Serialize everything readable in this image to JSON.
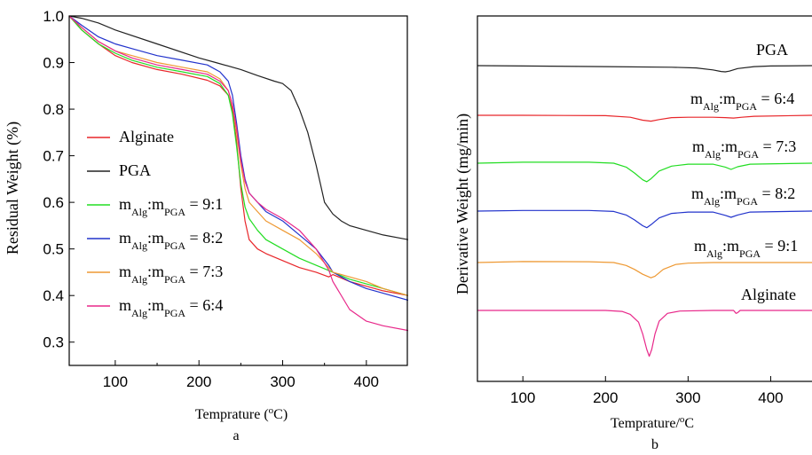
{
  "chart_data": [
    {
      "type": "line",
      "panel_label": "a",
      "xlabel": "Temprature (",
      "xlabel_sup": "o",
      "xlabel_end": "C)",
      "ylabel": "Residual Weight (%)",
      "xlim": [
        45,
        450
      ],
      "ylim": [
        0.25,
        1.0
      ],
      "xticks": [
        "100",
        "200",
        "300",
        "400"
      ],
      "xtick_values": [
        100,
        200,
        300,
        400
      ],
      "yticks": [
        "0.3",
        "0.4",
        "0.5",
        "0.6",
        "0.7",
        "0.8",
        "0.9",
        "1.0"
      ],
      "ytick_values": [
        0.3,
        0.4,
        0.5,
        0.6,
        0.7,
        0.8,
        0.9,
        1.0
      ],
      "legend": [
        {
          "series": 0,
          "text": "Alginate"
        },
        {
          "series": 1,
          "text": "PGA"
        },
        {
          "series": 2,
          "m": "m",
          "sub1": "Alg",
          "colon": ":m",
          "sub2": "PGA",
          "ratio": " = 9:1"
        },
        {
          "series": 3,
          "m": "m",
          "sub1": "Alg",
          "colon": ":m",
          "sub2": "PGA",
          "ratio": " = 8:2"
        },
        {
          "series": 4,
          "m": "m",
          "sub1": "Alg",
          "colon": ":m",
          "sub2": "PGA",
          "ratio": " = 7:3"
        },
        {
          "series": 5,
          "m": "m",
          "sub1": "Alg",
          "colon": ":m",
          "sub2": "PGA",
          "ratio": " = 6:4"
        }
      ],
      "series": [
        {
          "name": "Alginate",
          "color": "#e8262a",
          "x": [
            45,
            60,
            80,
            100,
            120,
            150,
            180,
            210,
            225,
            235,
            240,
            245,
            250,
            255,
            260,
            270,
            280,
            300,
            320,
            340,
            355,
            360,
            380,
            400,
            420,
            450
          ],
          "y": [
            1.0,
            0.97,
            0.94,
            0.915,
            0.9,
            0.885,
            0.875,
            0.862,
            0.85,
            0.83,
            0.8,
            0.73,
            0.63,
            0.56,
            0.52,
            0.5,
            0.49,
            0.475,
            0.46,
            0.45,
            0.44,
            0.445,
            0.43,
            0.42,
            0.41,
            0.4
          ]
        },
        {
          "name": "PGA",
          "color": "#222222",
          "x": [
            45,
            60,
            80,
            100,
            150,
            200,
            220,
            250,
            270,
            290,
            300,
            310,
            320,
            330,
            340,
            345,
            350,
            360,
            370,
            380,
            400,
            420,
            450
          ],
          "y": [
            1.0,
            0.995,
            0.985,
            0.97,
            0.94,
            0.91,
            0.9,
            0.885,
            0.872,
            0.86,
            0.855,
            0.84,
            0.8,
            0.75,
            0.68,
            0.64,
            0.6,
            0.575,
            0.56,
            0.55,
            0.54,
            0.53,
            0.52
          ]
        },
        {
          "name": "9:1",
          "color": "#22dd22",
          "x": [
            45,
            60,
            80,
            100,
            120,
            150,
            180,
            210,
            225,
            235,
            240,
            245,
            250,
            255,
            260,
            270,
            280,
            300,
            320,
            340,
            360,
            380,
            400,
            420,
            450
          ],
          "y": [
            1.0,
            0.97,
            0.94,
            0.92,
            0.905,
            0.89,
            0.88,
            0.87,
            0.855,
            0.83,
            0.79,
            0.72,
            0.64,
            0.59,
            0.565,
            0.54,
            0.52,
            0.5,
            0.48,
            0.465,
            0.45,
            0.435,
            0.425,
            0.415,
            0.4
          ]
        },
        {
          "name": "8:2",
          "color": "#2233cc",
          "x": [
            45,
            60,
            80,
            100,
            120,
            150,
            180,
            210,
            225,
            235,
            240,
            245,
            250,
            255,
            260,
            270,
            280,
            300,
            320,
            340,
            355,
            360,
            380,
            400,
            420,
            450
          ],
          "y": [
            1.0,
            0.98,
            0.955,
            0.94,
            0.93,
            0.915,
            0.905,
            0.895,
            0.88,
            0.86,
            0.83,
            0.77,
            0.7,
            0.65,
            0.62,
            0.6,
            0.58,
            0.56,
            0.53,
            0.5,
            0.465,
            0.45,
            0.43,
            0.415,
            0.405,
            0.39
          ]
        },
        {
          "name": "7:3",
          "color": "#ee9933",
          "x": [
            45,
            60,
            80,
            100,
            120,
            150,
            180,
            210,
            225,
            235,
            240,
            245,
            250,
            255,
            260,
            270,
            280,
            300,
            320,
            340,
            355,
            360,
            380,
            400,
            420,
            450
          ],
          "y": [
            1.0,
            0.975,
            0.945,
            0.925,
            0.915,
            0.9,
            0.89,
            0.88,
            0.865,
            0.84,
            0.81,
            0.75,
            0.68,
            0.63,
            0.6,
            0.58,
            0.56,
            0.54,
            0.52,
            0.49,
            0.46,
            0.45,
            0.44,
            0.43,
            0.415,
            0.4
          ]
        },
        {
          "name": "6:4",
          "color": "#e8288a",
          "x": [
            45,
            60,
            80,
            100,
            120,
            150,
            180,
            210,
            225,
            235,
            240,
            245,
            250,
            255,
            260,
            270,
            280,
            300,
            320,
            340,
            355,
            360,
            380,
            400,
            420,
            450
          ],
          "y": [
            1.0,
            0.975,
            0.945,
            0.925,
            0.91,
            0.895,
            0.885,
            0.875,
            0.86,
            0.84,
            0.81,
            0.76,
            0.69,
            0.645,
            0.62,
            0.6,
            0.585,
            0.565,
            0.54,
            0.5,
            0.455,
            0.43,
            0.37,
            0.345,
            0.335,
            0.325
          ]
        }
      ]
    },
    {
      "type": "line",
      "panel_label": "b",
      "xlabel": "Temprature/",
      "xlabel_sup": "o",
      "xlabel_end": "C",
      "ylabel": "Derivative Weight (mg/min)",
      "xlim": [
        45,
        450
      ],
      "xticks": [
        "100",
        "200",
        "300",
        "400"
      ],
      "xtick_values": [
        100,
        200,
        300,
        400
      ],
      "baselines": [
        0,
        -1,
        -2,
        -3,
        -4,
        -5
      ],
      "labels": [
        {
          "series": 0,
          "text": "PGA"
        },
        {
          "series": 1,
          "m": "m",
          "sub1": "Alg",
          "colon": ":m",
          "sub2": "PGA",
          "ratio": " = 6:4"
        },
        {
          "series": 2,
          "m": "m",
          "sub1": "Alg",
          "colon": ":m",
          "sub2": "PGA",
          "ratio": " = 7:3"
        },
        {
          "series": 3,
          "m": "m",
          "sub1": "Alg",
          "colon": ":m",
          "sub2": "PGA",
          "ratio": " = 8:2"
        },
        {
          "series": 4,
          "m": "m",
          "sub1": "Alg",
          "colon": ":m",
          "sub2": "PGA",
          "ratio": " = 9:1"
        },
        {
          "series": 5,
          "text": "Alginate"
        }
      ],
      "series": [
        {
          "name": "PGA",
          "color": "#222222",
          "x": [
            45,
            100,
            200,
            280,
            310,
            330,
            340,
            345,
            350,
            360,
            380,
            400,
            450
          ],
          "y": [
            0.0,
            -0.02,
            -0.05,
            -0.08,
            -0.12,
            -0.22,
            -0.3,
            -0.32,
            -0.28,
            -0.15,
            -0.05,
            -0.02,
            0.0
          ]
        },
        {
          "name": "6:4",
          "color": "#e8262a",
          "x": [
            45,
            100,
            200,
            230,
            245,
            255,
            265,
            280,
            300,
            330,
            345,
            355,
            365,
            380,
            450
          ],
          "y": [
            0.0,
            0.0,
            -0.02,
            -0.1,
            -0.25,
            -0.3,
            -0.22,
            -0.12,
            -0.1,
            -0.1,
            -0.12,
            -0.14,
            -0.1,
            -0.05,
            0.0
          ]
        },
        {
          "name": "7:3",
          "color": "#22dd22",
          "x": [
            45,
            100,
            180,
            210,
            225,
            235,
            245,
            250,
            255,
            265,
            280,
            300,
            330,
            345,
            352,
            360,
            375,
            450
          ],
          "y": [
            0.0,
            0.05,
            0.05,
            0.0,
            -0.2,
            -0.5,
            -0.85,
            -0.95,
            -0.8,
            -0.4,
            -0.15,
            -0.05,
            -0.05,
            -0.2,
            -0.32,
            -0.18,
            -0.05,
            0.0
          ]
        },
        {
          "name": "8:2",
          "color": "#2233cc",
          "x": [
            45,
            100,
            180,
            210,
            225,
            235,
            245,
            250,
            255,
            265,
            280,
            300,
            330,
            345,
            352,
            360,
            375,
            450
          ],
          "y": [
            0.0,
            0.03,
            0.03,
            -0.02,
            -0.2,
            -0.45,
            -0.75,
            -0.85,
            -0.7,
            -0.35,
            -0.12,
            -0.05,
            -0.05,
            -0.22,
            -0.32,
            -0.2,
            -0.05,
            0.0
          ]
        },
        {
          "name": "9:1",
          "color": "#ee9933",
          "x": [
            45,
            100,
            180,
            210,
            225,
            235,
            245,
            255,
            260,
            270,
            285,
            300,
            330,
            450
          ],
          "y": [
            0.0,
            0.05,
            0.04,
            0.0,
            -0.15,
            -0.35,
            -0.6,
            -0.78,
            -0.7,
            -0.35,
            -0.1,
            -0.03,
            0.0,
            0.0
          ]
        },
        {
          "name": "Alginate",
          "color": "#e8288a",
          "x": [
            45,
            100,
            200,
            220,
            230,
            240,
            245,
            250,
            253,
            256,
            260,
            265,
            275,
            290,
            330,
            355,
            358,
            360,
            363,
            450
          ],
          "y": [
            0.0,
            0.0,
            0.0,
            -0.05,
            -0.2,
            -0.6,
            -1.2,
            -2.0,
            -2.35,
            -2.0,
            -1.2,
            -0.55,
            -0.15,
            -0.03,
            0.0,
            0.0,
            -0.15,
            -0.12,
            0.0,
            0.0
          ]
        }
      ]
    }
  ]
}
